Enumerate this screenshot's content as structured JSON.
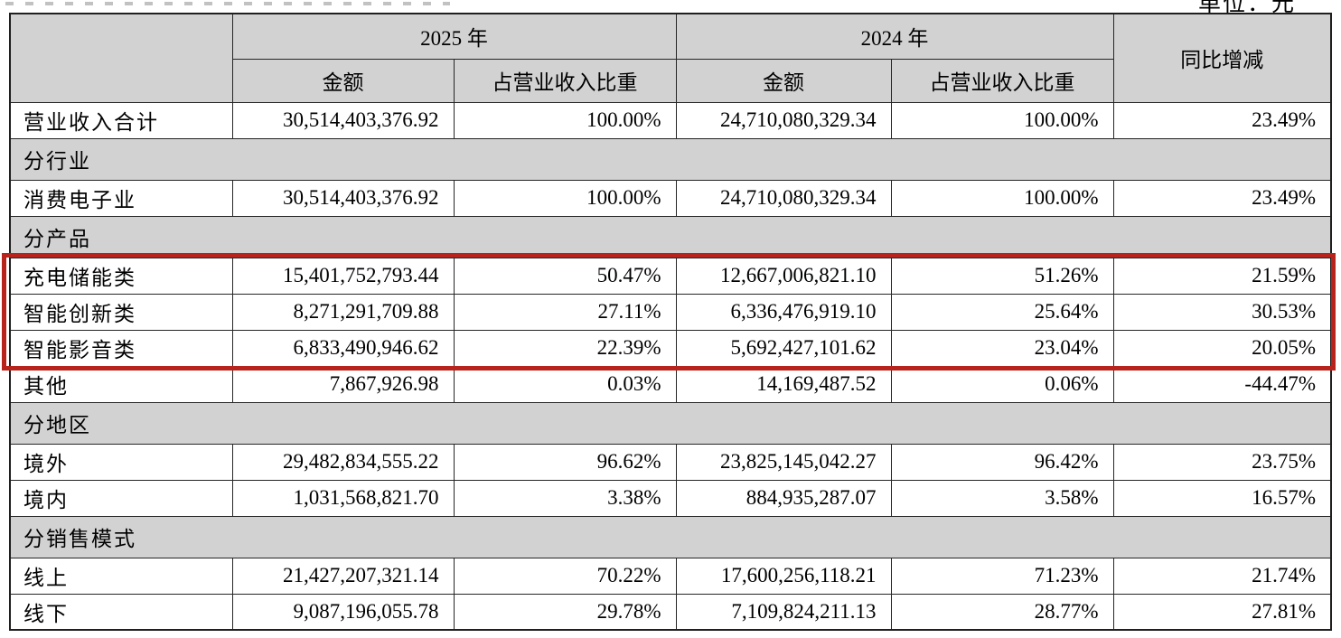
{
  "page": {
    "unit_note": "单位：元"
  },
  "colors": {
    "table_gray": "#d2d2d2",
    "highlight_red": "#b8241b",
    "border": "#262626"
  },
  "table": {
    "header": {
      "col_2025": "2025 年",
      "col_2024": "2024 年",
      "col_yoy": "同比增减",
      "sub_amount_2025": "金额",
      "sub_pct_2025": "占营业收入比重",
      "sub_amount_2024": "金额",
      "sub_pct_2024": "占营业收入比重"
    },
    "rows": [
      {
        "type": "data",
        "label": "营业收入合计",
        "a2025": "30,514,403,376.92",
        "p2025": "100.00%",
        "a2024": "24,710,080,329.34",
        "p2024": "100.00%",
        "yoy": "23.49%",
        "label_gray": true,
        "highlight": false
      },
      {
        "type": "section",
        "label": "分行业"
      },
      {
        "type": "data",
        "label": "消费电子业",
        "a2025": "30,514,403,376.92",
        "p2025": "100.00%",
        "a2024": "24,710,080,329.34",
        "p2024": "100.00%",
        "yoy": "23.49%",
        "label_gray": false,
        "highlight": false
      },
      {
        "type": "section",
        "label": "分产品"
      },
      {
        "type": "data",
        "label": "充电储能类",
        "a2025": "15,401,752,793.44",
        "p2025": "50.47%",
        "a2024": "12,667,006,821.10",
        "p2024": "51.26%",
        "yoy": "21.59%",
        "label_gray": false,
        "highlight": true
      },
      {
        "type": "data",
        "label": "智能创新类",
        "a2025": "8,271,291,709.88",
        "p2025": "27.11%",
        "a2024": "6,336,476,919.10",
        "p2024": "25.64%",
        "yoy": "30.53%",
        "label_gray": false,
        "highlight": true
      },
      {
        "type": "data",
        "label": "智能影音类",
        "a2025": "6,833,490,946.62",
        "p2025": "22.39%",
        "a2024": "5,692,427,101.62",
        "p2024": "23.04%",
        "yoy": "20.05%",
        "label_gray": false,
        "highlight": true
      },
      {
        "type": "data",
        "label": "其他",
        "a2025": "7,867,926.98",
        "p2025": "0.03%",
        "a2024": "14,169,487.52",
        "p2024": "0.06%",
        "yoy": "-44.47%",
        "label_gray": false,
        "highlight": false
      },
      {
        "type": "section",
        "label": "分地区"
      },
      {
        "type": "data",
        "label": "境外",
        "a2025": "29,482,834,555.22",
        "p2025": "96.62%",
        "a2024": "23,825,145,042.27",
        "p2024": "96.42%",
        "yoy": "23.75%",
        "label_gray": false,
        "highlight": false
      },
      {
        "type": "data",
        "label": "境内",
        "a2025": "1,031,568,821.70",
        "p2025": "3.38%",
        "a2024": "884,935,287.07",
        "p2024": "3.58%",
        "yoy": "16.57%",
        "label_gray": false,
        "highlight": false
      },
      {
        "type": "section",
        "label": "分销售模式"
      },
      {
        "type": "data",
        "label": "线上",
        "a2025": "21,427,207,321.14",
        "p2025": "70.22%",
        "a2024": "17,600,256,118.21",
        "p2024": "71.23%",
        "yoy": "21.74%",
        "label_gray": false,
        "highlight": false
      },
      {
        "type": "data",
        "label": "线下",
        "a2025": "9,087,196,055.78",
        "p2025": "29.78%",
        "a2024": "7,109,824,211.13",
        "p2024": "28.77%",
        "yoy": "27.81%",
        "label_gray": false,
        "highlight": false
      }
    ]
  }
}
